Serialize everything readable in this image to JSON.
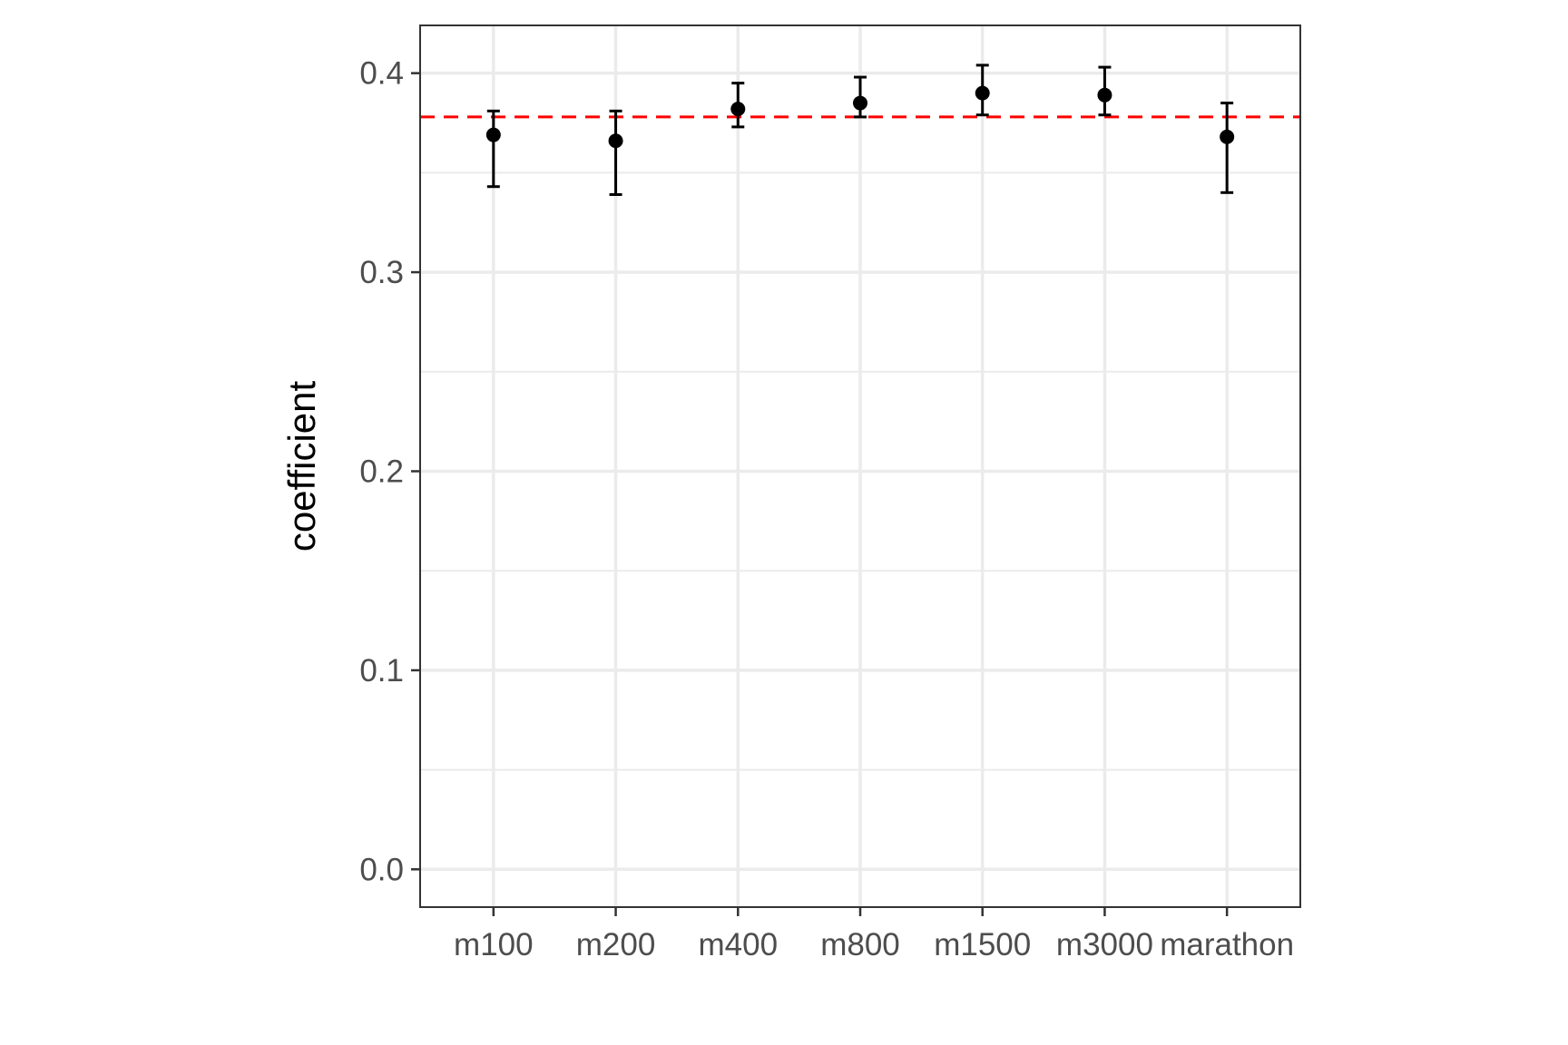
{
  "chart_data": {
    "type": "scatter",
    "title": "",
    "xlabel": "",
    "ylabel": "coefficient",
    "categories": [
      "m100",
      "m200",
      "m400",
      "m800",
      "m1500",
      "m3000",
      "marathon"
    ],
    "values": [
      0.369,
      0.366,
      0.382,
      0.385,
      0.39,
      0.389,
      0.368
    ],
    "error_low": [
      0.343,
      0.339,
      0.373,
      0.378,
      0.379,
      0.379,
      0.34
    ],
    "error_high": [
      0.381,
      0.381,
      0.395,
      0.398,
      0.404,
      0.403,
      0.385
    ],
    "reference_line": {
      "y": 0.378,
      "style": "dashed",
      "color": "#ff0000"
    },
    "ylim": [
      -0.019,
      0.424
    ],
    "yticks": [
      0.0,
      0.1,
      0.2,
      0.3,
      0.4
    ],
    "ytick_labels": [
      "0.0",
      "0.1",
      "0.2",
      "0.3",
      "0.4"
    ],
    "grid": true,
    "legend": "none",
    "colors": {
      "points": "#000000",
      "grid": "#ebebeb",
      "panel_border": "#333333",
      "tick_text": "#4d4d4d"
    }
  }
}
